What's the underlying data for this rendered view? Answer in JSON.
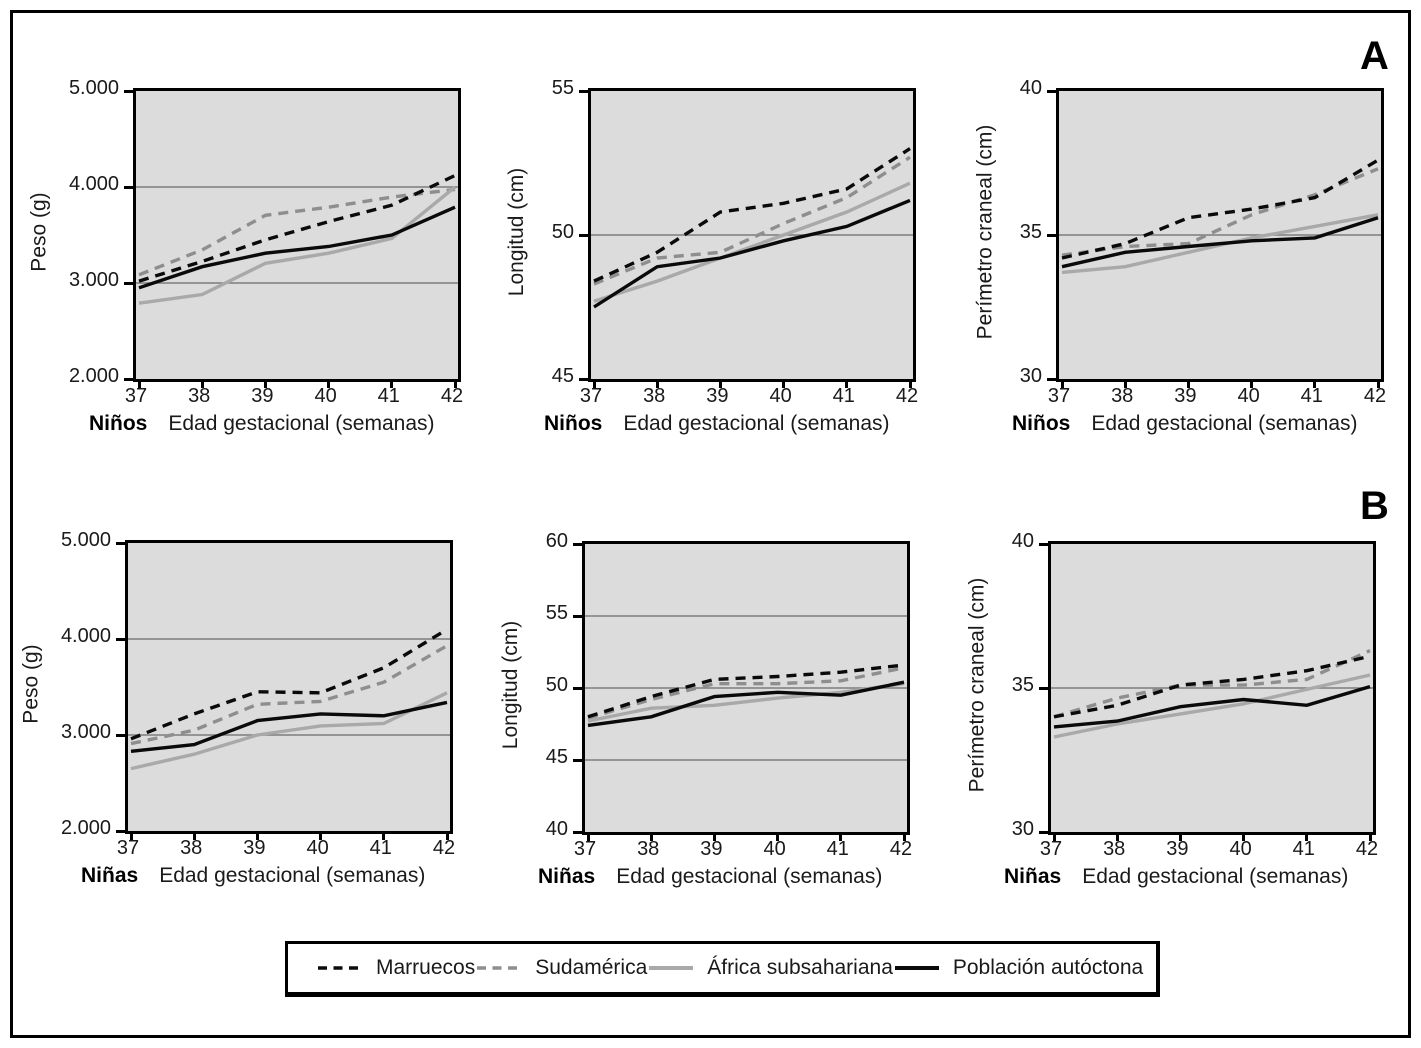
{
  "figure": {
    "panels": [
      {
        "letter": "A"
      },
      {
        "letter": "B"
      }
    ]
  },
  "legend": {
    "items": [
      {
        "label": "Marruecos",
        "series": "marruecos"
      },
      {
        "label": "Sudamérica",
        "series": "sudamerica"
      },
      {
        "label": "África subsahariana",
        "series": "africa_subsahariana"
      },
      {
        "label": "Población autóctona",
        "series": "poblacion_autoctona"
      }
    ]
  },
  "colors": {
    "black_line": "#0a0a0a",
    "gray_solid_line": "#a9a9a9",
    "gray_dashed_line": "#8e8e8e",
    "plot_background": "#dcdcdc",
    "gridline": "#7c7c7c",
    "frame": "#000000"
  },
  "series_styles": {
    "marruecos": {
      "color": "#0a0a0a",
      "dashed": true
    },
    "sudamerica": {
      "color": "#8e8e8e",
      "dashed": true
    },
    "africa_subsahariana": {
      "color": "#a9a9a9",
      "dashed": false
    },
    "poblacion_autoctona": {
      "color": "#0a0a0a",
      "dashed": false
    }
  },
  "chart_data": [
    {
      "type": "line",
      "panel": "A",
      "group": "Niños",
      "ylabel": "Peso (g)",
      "xlabel": "Edad gestacional (semanas)",
      "x": [
        37,
        38,
        39,
        40,
        41,
        42
      ],
      "ylim": [
        2000,
        5000
      ],
      "yticks": [
        {
          "label": "5.000",
          "value": 5000
        },
        {
          "label": "4.000",
          "value": 4000
        },
        {
          "label": "3.000",
          "value": 3000
        },
        {
          "label": "2.000",
          "value": 2000
        }
      ],
      "gridlines": [
        4000,
        3000
      ],
      "series": [
        {
          "name": "Marruecos",
          "key": "marruecos",
          "values": [
            3020,
            3225,
            3450,
            3640,
            3810,
            4120
          ]
        },
        {
          "name": "Sudamérica",
          "key": "sudamerica",
          "values": [
            3085,
            3345,
            3705,
            3790,
            3895,
            3975
          ]
        },
        {
          "name": "África subsahariana",
          "key": "africa_subsahariana",
          "values": [
            2790,
            2880,
            3205,
            3310,
            3465,
            4000
          ]
        },
        {
          "name": "Población autóctona",
          "key": "poblacion_autoctona",
          "values": [
            2950,
            3170,
            3310,
            3380,
            3500,
            3790
          ]
        }
      ]
    },
    {
      "type": "line",
      "panel": "A",
      "group": "Niños",
      "ylabel": "Longitud (cm)",
      "xlabel": "Edad gestacional (semanas)",
      "x": [
        37,
        38,
        39,
        40,
        41,
        42
      ],
      "ylim": [
        45,
        55
      ],
      "yticks": [
        {
          "label": "55",
          "value": 55
        },
        {
          "label": "50",
          "value": 50
        },
        {
          "label": "45",
          "value": 45
        }
      ],
      "gridlines": [
        50
      ],
      "series": [
        {
          "name": "Marruecos",
          "key": "marruecos",
          "values": [
            48.4,
            49.4,
            50.8,
            51.1,
            51.6,
            53.0
          ]
        },
        {
          "name": "Sudamérica",
          "key": "sudamerica",
          "values": [
            48.3,
            49.2,
            49.4,
            50.4,
            51.3,
            52.7
          ]
        },
        {
          "name": "África subsahariana",
          "key": "africa_subsahariana",
          "values": [
            47.7,
            48.4,
            49.2,
            50.0,
            50.8,
            51.8
          ]
        },
        {
          "name": "Población autóctona",
          "key": "poblacion_autoctona",
          "values": [
            47.5,
            48.9,
            49.2,
            49.8,
            50.3,
            51.2
          ]
        }
      ]
    },
    {
      "type": "line",
      "panel": "A",
      "group": "Niños",
      "ylabel": "Perímetro craneal (cm)",
      "xlabel": "Edad gestacional (semanas)",
      "x": [
        37,
        38,
        39,
        40,
        41,
        42
      ],
      "ylim": [
        30,
        40
      ],
      "yticks": [
        {
          "label": "40",
          "value": 40
        },
        {
          "label": "35",
          "value": 35
        },
        {
          "label": "30",
          "value": 30
        }
      ],
      "gridlines": [
        35
      ],
      "series": [
        {
          "name": "Marruecos",
          "key": "marruecos",
          "values": [
            34.2,
            34.7,
            35.6,
            35.9,
            36.3,
            37.6
          ]
        },
        {
          "name": "Sudamérica",
          "key": "sudamerica",
          "values": [
            34.3,
            34.6,
            34.7,
            35.7,
            36.4,
            37.3
          ]
        },
        {
          "name": "África subsahariana",
          "key": "africa_subsahariana",
          "values": [
            33.7,
            33.9,
            34.4,
            34.9,
            35.3,
            35.7
          ]
        },
        {
          "name": "Población autóctona",
          "key": "poblacion_autoctona",
          "values": [
            33.9,
            34.4,
            34.6,
            34.8,
            34.9,
            35.6
          ]
        }
      ]
    },
    {
      "type": "line",
      "panel": "B",
      "group": "Niñas",
      "ylabel": "Peso (g)",
      "xlabel": "Edad gestacional (semanas)",
      "x": [
        37,
        38,
        39,
        40,
        41,
        42
      ],
      "ylim": [
        2000,
        5000
      ],
      "yticks": [
        {
          "label": "5.000",
          "value": 5000
        },
        {
          "label": "4.000",
          "value": 4000
        },
        {
          "label": "3.000",
          "value": 3000
        },
        {
          "label": "2.000",
          "value": 2000
        }
      ],
      "gridlines": [
        4000,
        3000
      ],
      "series": [
        {
          "name": "Marruecos",
          "key": "marruecos",
          "values": [
            2960,
            3220,
            3450,
            3440,
            3700,
            4100
          ]
        },
        {
          "name": "Sudamérica",
          "key": "sudamerica",
          "values": [
            2910,
            3050,
            3320,
            3350,
            3550,
            3930
          ]
        },
        {
          "name": "África subsahariana",
          "key": "africa_subsahariana",
          "values": [
            2650,
            2800,
            3000,
            3095,
            3120,
            3440
          ]
        },
        {
          "name": "Población autóctona",
          "key": "poblacion_autoctona",
          "values": [
            2830,
            2900,
            3150,
            3220,
            3200,
            3340
          ]
        }
      ]
    },
    {
      "type": "line",
      "panel": "B",
      "group": "Niñas",
      "ylabel": "Longitud (cm)",
      "xlabel": "Edad gestacional (semanas)",
      "x": [
        37,
        38,
        39,
        40,
        41,
        42
      ],
      "ylim": [
        40,
        60
      ],
      "yticks": [
        {
          "label": "60",
          "value": 60
        },
        {
          "label": "55",
          "value": 55
        },
        {
          "label": "50",
          "value": 50
        },
        {
          "label": "45",
          "value": 45
        },
        {
          "label": "40",
          "value": 40
        }
      ],
      "gridlines": [
        55,
        50,
        45
      ],
      "series": [
        {
          "name": "Marruecos",
          "key": "marruecos",
          "values": [
            48.0,
            49.4,
            50.6,
            50.8,
            51.1,
            51.6
          ]
        },
        {
          "name": "Sudamérica",
          "key": "sudamerica",
          "values": [
            47.9,
            49.2,
            50.3,
            50.3,
            50.5,
            51.4
          ]
        },
        {
          "name": "África subsahariana",
          "key": "africa_subsahariana",
          "values": [
            47.7,
            48.6,
            48.8,
            49.3,
            49.7,
            50.3
          ]
        },
        {
          "name": "Población autóctona",
          "key": "poblacion_autoctona",
          "values": [
            47.4,
            48.0,
            49.4,
            49.7,
            49.5,
            50.4
          ]
        }
      ]
    },
    {
      "type": "line",
      "panel": "B",
      "group": "Niñas",
      "ylabel": "Perímetro craneal (cm)",
      "xlabel": "Edad gestacional (semanas)",
      "x": [
        37,
        38,
        39,
        40,
        41,
        42
      ],
      "ylim": [
        30,
        40
      ],
      "yticks": [
        {
          "label": "40",
          "value": 40
        },
        {
          "label": "35",
          "value": 35
        },
        {
          "label": "30",
          "value": 30
        }
      ],
      "gridlines": [
        35
      ],
      "series": [
        {
          "name": "Marruecos",
          "key": "marruecos",
          "values": [
            34.0,
            34.4,
            35.1,
            35.3,
            35.6,
            36.1
          ]
        },
        {
          "name": "Sudamérica",
          "key": "sudamerica",
          "values": [
            34.0,
            34.65,
            35.1,
            35.1,
            35.3,
            36.3
          ]
        },
        {
          "name": "África subsahariana",
          "key": "africa_subsahariana",
          "values": [
            33.3,
            33.75,
            34.1,
            34.45,
            34.95,
            35.45
          ]
        },
        {
          "name": "Población autóctona",
          "key": "poblacion_autoctona",
          "values": [
            33.65,
            33.85,
            34.35,
            34.6,
            34.4,
            35.05
          ]
        }
      ]
    }
  ]
}
